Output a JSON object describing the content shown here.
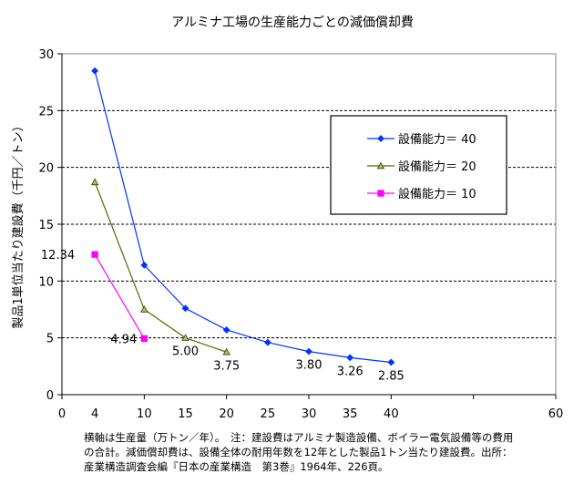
{
  "chart_data": {
    "type": "line",
    "title": "アルミナ工場の生産能力ごとの減価償却費",
    "ylabel": "製品1単位当たり建設費（千円／トン）",
    "xlim": [
      0,
      60
    ],
    "ylim": [
      0,
      30
    ],
    "x_ticks": [
      0,
      10,
      20,
      30,
      40,
      50,
      60
    ],
    "y_ticks": [
      0,
      5,
      10,
      15,
      20,
      25,
      30
    ],
    "x_tick_labels": [
      "0",
      "4",
      "10",
      "15",
      "20",
      "25",
      "30",
      "35",
      "40",
      "60"
    ],
    "grid": "horizontal dashed",
    "legend_position": "right",
    "series": [
      {
        "name": "設備能力＝ 40",
        "color": "#0033ff",
        "marker": "diamond",
        "points": [
          [
            4,
            28.5
          ],
          [
            10,
            11.4
          ],
          [
            15,
            7.6
          ],
          [
            20,
            5.7
          ],
          [
            25,
            4.6
          ],
          [
            30,
            3.8
          ],
          [
            35,
            3.26
          ],
          [
            40,
            2.85
          ]
        ]
      },
      {
        "name": "設備能力＝ 20",
        "color": "#556b00",
        "marker": "triangle",
        "points": [
          [
            4,
            18.7
          ],
          [
            10,
            7.5
          ],
          [
            15,
            5.0
          ],
          [
            20,
            3.75
          ]
        ]
      },
      {
        "name": "設備能力＝ 10",
        "color": "#ff00ff",
        "marker": "square",
        "points": [
          [
            4,
            12.34
          ],
          [
            10,
            4.94
          ]
        ]
      }
    ],
    "data_labels": [
      {
        "text": "12.34",
        "x": 4,
        "y": 12.34
      },
      {
        "text": "4.94",
        "x": 10,
        "y": 4.94
      },
      {
        "text": "5.00",
        "x": 15,
        "y": 5.0
      },
      {
        "text": "3.75",
        "x": 20,
        "y": 3.75
      },
      {
        "text": "3.80",
        "x": 30,
        "y": 3.8
      },
      {
        "text": "3.26",
        "x": 35,
        "y": 3.26
      },
      {
        "text": "2.85",
        "x": 40,
        "y": 2.85
      }
    ]
  },
  "footnote": "横軸は生産量（万トン／年）。　注：建設費はアルミナ製造設備、ボイラー電気設備等の費用\nの合計。減価償却費は、設備全体の耐用年数を12年とした製品1トン当たり建設費。出所：\n産業構造調査会編『日本の産業構造　第3巻』1964年、226頁。"
}
